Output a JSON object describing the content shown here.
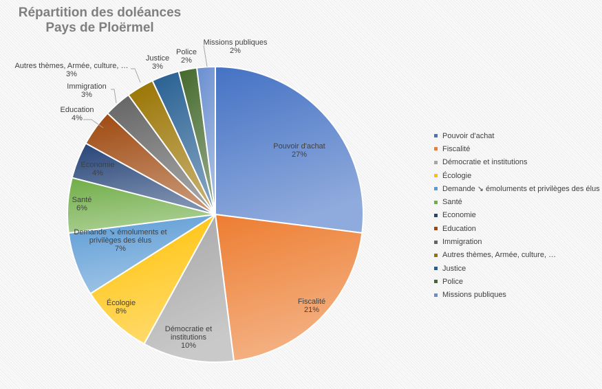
{
  "chart_data": {
    "type": "pie",
    "title": [
      "Répartition des doléances",
      "Pays de Ploërmel"
    ],
    "legend_position": "right",
    "slices": [
      {
        "label": "Pouvoir d'achat",
        "value": 27,
        "value_label": "27%",
        "color": "#4472C4"
      },
      {
        "label": "Fiscalité",
        "value": 21,
        "value_label": "21%",
        "color": "#ED7D31"
      },
      {
        "label": "Démocratie et institutions",
        "value": 10,
        "value_label": "10%",
        "color": "#A5A5A5"
      },
      {
        "label": "Écologie",
        "value": 8,
        "value_label": "8%",
        "color": "#FFC000"
      },
      {
        "label": "Demande ↘ émoluments et privilèges des élus",
        "value": 7,
        "value_label": "7%",
        "color": "#5B9BD5"
      },
      {
        "label": "Santé",
        "value": 6,
        "value_label": "6%",
        "color": "#70AD47"
      },
      {
        "label": "Economie",
        "value": 4,
        "value_label": "4%",
        "color": "#264478"
      },
      {
        "label": "Education",
        "value": 4,
        "value_label": "4%",
        "color": "#9E480E"
      },
      {
        "label": "Immigration",
        "value": 3,
        "value_label": "3%",
        "color": "#636363"
      },
      {
        "label": "Autres thèmes, Armée, culture, …",
        "value": 3,
        "value_label": "3%",
        "color": "#997300"
      },
      {
        "label": "Justice",
        "value": 3,
        "value_label": "3%",
        "color": "#255E91"
      },
      {
        "label": "Police",
        "value": 2,
        "value_label": "2%",
        "color": "#43682B"
      },
      {
        "label": "Missions publiques",
        "value": 2,
        "value_label": "2%",
        "color": "#698ED0"
      }
    ],
    "data_label_lines": [
      [
        "Pouvoir d'achat"
      ],
      [
        "Fiscalité"
      ],
      [
        "Démocratie et",
        "institutions"
      ],
      [
        "Écologie"
      ],
      [
        "Demande ↘ émoluments et",
        "privilèges des élus"
      ],
      [
        "Santé"
      ],
      [
        "Economie"
      ],
      [
        "Education"
      ],
      [
        "Immigration"
      ],
      [
        "Autres thèmes, Armée, culture, …"
      ],
      [
        "Justice"
      ],
      [
        "Police"
      ],
      [
        "Missions publiques"
      ]
    ]
  }
}
